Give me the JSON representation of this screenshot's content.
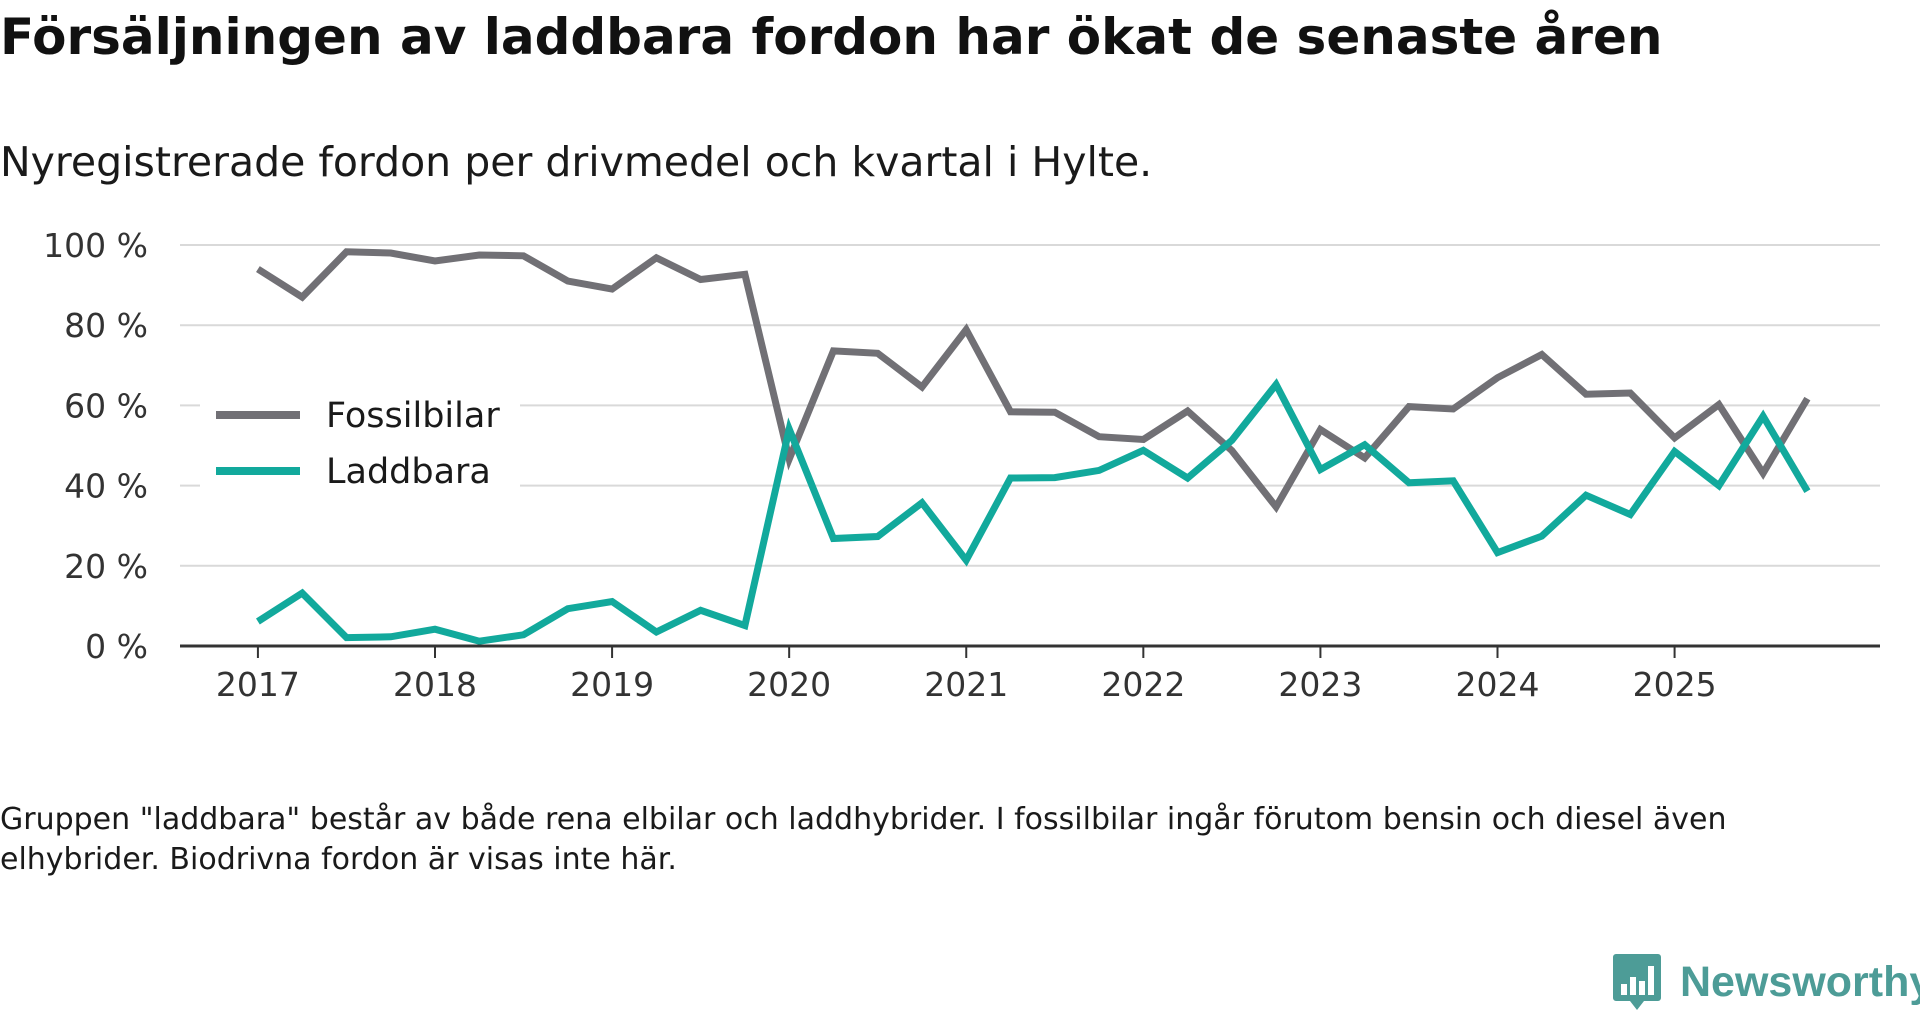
{
  "chart_data": {
    "type": "line",
    "title": "Försäljningen av laddbara fordon har ökat de senaste åren",
    "subtitle": "Nyregistrerade fordon per drivmedel och kvartal i Hylte.",
    "xlabel": "",
    "ylabel": "",
    "ylim": [
      0,
      100
    ],
    "y_ticks": [
      0,
      20,
      40,
      60,
      80,
      100
    ],
    "y_tick_labels": [
      "0 %",
      "20 %",
      "40 %",
      "60 %",
      "80 %",
      "100 %"
    ],
    "x_ticks": [
      2017,
      2018,
      2019,
      2020,
      2021,
      2022,
      2023,
      2024,
      2025
    ],
    "x_tick_labels": [
      "2017",
      "2018",
      "2019",
      "2020",
      "2021",
      "2022",
      "2023",
      "2024",
      "2025"
    ],
    "xlim": [
      2016.56,
      2026.16
    ],
    "x": [
      2017.0,
      2017.25,
      2017.5,
      2017.75,
      2018.0,
      2018.25,
      2018.5,
      2018.75,
      2019.0,
      2019.25,
      2019.5,
      2019.75,
      2020.0,
      2020.25,
      2020.5,
      2020.75,
      2021.0,
      2021.25,
      2021.5,
      2021.75,
      2022.0,
      2022.25,
      2022.5,
      2022.75,
      2023.0,
      2023.25,
      2023.5,
      2023.75,
      2024.0,
      2024.25,
      2024.5,
      2024.75,
      2025.0,
      2025.25,
      2025.5,
      2025.75
    ],
    "grid": true,
    "legend_position": "middle-left",
    "series": [
      {
        "name": "Fossilbilar",
        "color": "#717075",
        "values": [
          94,
          87,
          98.3,
          98,
          96,
          97.5,
          97.3,
          91,
          89,
          96.8,
          91.4,
          92.7,
          46.6,
          73.6,
          73,
          64.6,
          78.9,
          58.4,
          58.3,
          52.2,
          51.5,
          58.6,
          48.7,
          34.7,
          54,
          46.9,
          59.7,
          59.1,
          66.9,
          72.7,
          62.8,
          63.1,
          51.9,
          60.2,
          43.1,
          61.7
        ]
      },
      {
        "name": "Laddbara",
        "color": "#12a99c",
        "values": [
          6.1,
          13.2,
          2.1,
          2.3,
          4.2,
          1.2,
          2.8,
          9.3,
          11.1,
          3.5,
          8.9,
          5.1,
          54.1,
          26.8,
          27.3,
          35.7,
          21.4,
          41.9,
          42,
          43.8,
          48.8,
          41.9,
          51.3,
          65.2,
          44,
          50.2,
          40.7,
          41.2,
          23.3,
          27.4,
          37.6,
          32.8,
          48.5,
          40,
          57.3,
          38.6
        ]
      }
    ]
  },
  "footnote": "Gruppen \"laddbara\" består av både rena elbilar och laddhybrider. I fossilbilar ingår förutom bensin och diesel även elhybrider. Biodrivna fordon är visas inte här.",
  "brand": {
    "name": "Newsworthy",
    "icon": "newsworthy-logo-icon",
    "color": "#4d9c97"
  }
}
